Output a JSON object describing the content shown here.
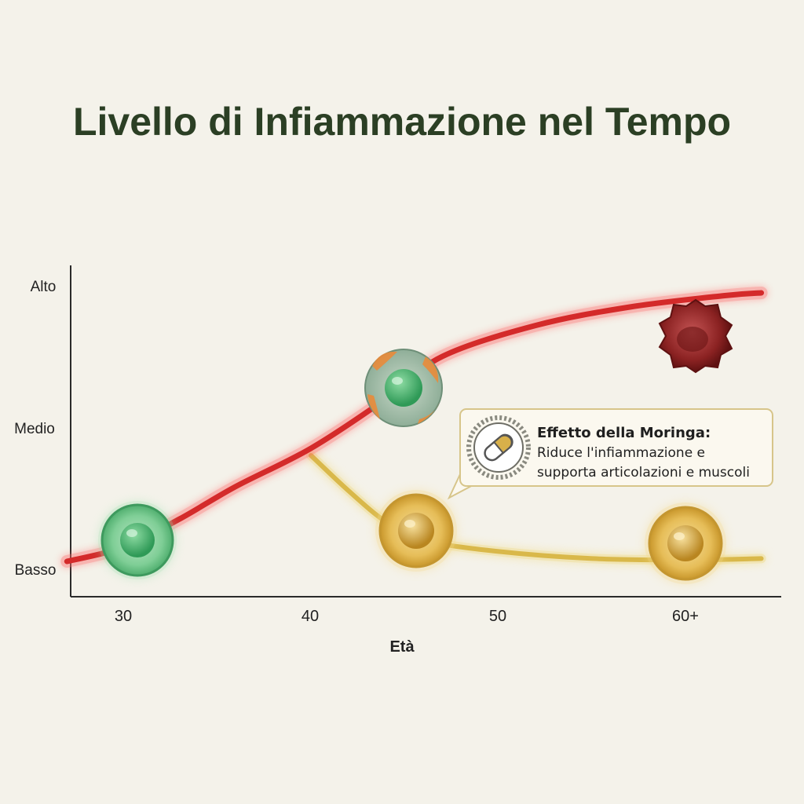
{
  "chart_data": {
    "type": "line",
    "title": "Livello di Infiammazione nel Tempo",
    "xlabel": "Età",
    "ylabel": "",
    "x_ticks": [
      "30",
      "40",
      "50",
      "60+"
    ],
    "y_ticks": [
      "Basso",
      "Medio",
      "Alto"
    ],
    "series": [
      {
        "color": "#d42a2a",
        "x": [
          27,
          30,
          33,
          36,
          40,
          44,
          47,
          52,
          57,
          62,
          64
        ],
        "y": [
          0.05,
          0.15,
          0.35,
          0.58,
          0.85,
          1.2,
          1.5,
          1.72,
          1.85,
          1.93,
          1.95
        ]
      },
      {
        "color": "#d9b84a",
        "x": [
          40,
          42,
          44,
          46,
          50,
          55,
          60,
          64
        ],
        "y": [
          0.8,
          0.55,
          0.33,
          0.2,
          0.12,
          0.07,
          0.06,
          0.07
        ]
      }
    ],
    "annotation": {
      "title": "Effetto della Moringa:",
      "lines": [
        "Riduce l'infiammazione e",
        "supporta articolazioni e muscoli"
      ]
    }
  },
  "colors": {
    "title": "#2b3f24",
    "axis": "#2a2a2a",
    "inflammation_line": "#d42a2a",
    "moringa_line": "#d9b84a",
    "healthy_cell": "#6cc68a",
    "stressed_cell": "#8fb59a",
    "damaged_cell": "#7a1c1c",
    "protected_cell": "#e2b646"
  },
  "icons": {
    "cell_healthy": "healthy-cell-icon",
    "cell_stressed": "stressed-cell-icon",
    "cell_damaged": "damaged-cell-icon",
    "cell_protected": "protected-cell-icon",
    "capsule": "capsule-icon"
  }
}
